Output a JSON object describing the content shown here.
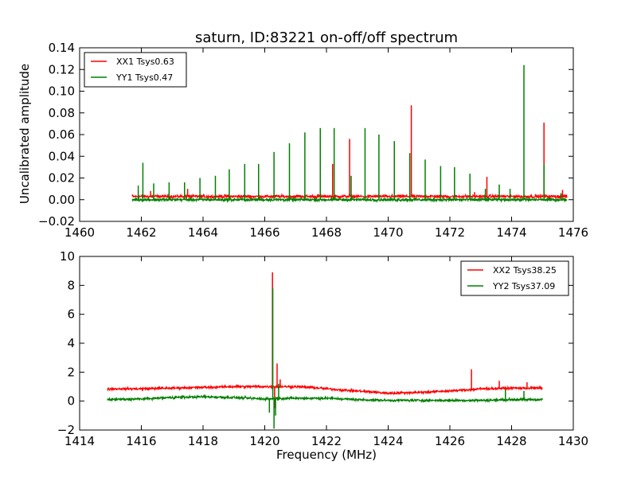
{
  "figure": {
    "title": "saturn, ID:83221 on-off/off spectrum",
    "ylabel": "Uncalibrated amplitude",
    "xlabel": "Frequency (MHz)"
  },
  "chart_data": [
    {
      "type": "line",
      "title": "saturn, ID:83221 on-off/off spectrum",
      "xlabel": "",
      "ylabel": "Uncalibrated amplitude",
      "xlim": [
        1460,
        1476
      ],
      "ylim": [
        -0.02,
        0.14
      ],
      "xticks": [
        1460,
        1462,
        1464,
        1466,
        1468,
        1470,
        1472,
        1474,
        1476
      ],
      "yticks": [
        -0.02,
        0.0,
        0.02,
        0.04,
        0.06,
        0.08,
        0.1,
        0.12,
        0.14
      ],
      "ytick_labels": [
        "−0.02",
        "0.00",
        "0.02",
        "0.04",
        "0.06",
        "0.08",
        "0.10",
        "0.12",
        "0.14"
      ],
      "legend_position": "top-left",
      "x_range": [
        1461.7,
        1475.8
      ],
      "series": [
        {
          "name": "XX1 Tsys0.63",
          "color": "#ff0000",
          "baseline": 0.003,
          "noise": 0.002,
          "spikes": [
            [
              1462.3,
              0.008
            ],
            [
              1463.5,
              0.01
            ],
            [
              1464.7,
              0.005
            ],
            [
              1465.8,
              0.016
            ],
            [
              1467.3,
              0.005
            ],
            [
              1468.2,
              0.033
            ],
            [
              1468.75,
              0.056
            ],
            [
              1470.75,
              0.087
            ],
            [
              1472.8,
              0.007
            ],
            [
              1473.2,
              0.021
            ],
            [
              1475.05,
              0.071
            ],
            [
              1475.65,
              0.009
            ]
          ]
        },
        {
          "name": "YY1 Tsys0.47",
          "color": "#008000",
          "baseline": 0.0,
          "noise": 0.002,
          "spikes": [
            [
              1461.9,
              0.013
            ],
            [
              1462.05,
              0.034
            ],
            [
              1462.4,
              0.015
            ],
            [
              1462.9,
              0.016
            ],
            [
              1463.4,
              0.016
            ],
            [
              1463.9,
              0.02
            ],
            [
              1464.4,
              0.022
            ],
            [
              1464.85,
              0.028
            ],
            [
              1465.35,
              0.033
            ],
            [
              1465.8,
              0.033
            ],
            [
              1466.3,
              0.044
            ],
            [
              1466.8,
              0.052
            ],
            [
              1467.3,
              0.062
            ],
            [
              1467.8,
              0.066
            ],
            [
              1468.25,
              0.066
            ],
            [
              1468.8,
              0.022
            ],
            [
              1469.25,
              0.066
            ],
            [
              1469.7,
              0.06
            ],
            [
              1470.2,
              0.054
            ],
            [
              1470.7,
              0.043
            ],
            [
              1471.2,
              0.037
            ],
            [
              1471.7,
              0.031
            ],
            [
              1472.15,
              0.03
            ],
            [
              1472.65,
              0.024
            ],
            [
              1473.15,
              0.01
            ],
            [
              1473.6,
              0.014
            ],
            [
              1473.95,
              0.01
            ],
            [
              1474.4,
              0.124
            ],
            [
              1475.05,
              0.033
            ],
            [
              1475.6,
              0.006
            ]
          ]
        }
      ]
    },
    {
      "type": "line",
      "title": "",
      "xlabel": "Frequency (MHz)",
      "ylabel": "",
      "xlim": [
        1414,
        1430
      ],
      "ylim": [
        -2,
        10
      ],
      "xticks": [
        1414,
        1416,
        1418,
        1420,
        1422,
        1424,
        1426,
        1428,
        1430
      ],
      "yticks": [
        -2,
        0,
        2,
        4,
        6,
        8,
        10
      ],
      "ytick_labels": [
        "−2",
        "0",
        "2",
        "4",
        "6",
        "8",
        "10"
      ],
      "legend_position": "top-right",
      "x_range": [
        1414.9,
        1429.0
      ],
      "series": [
        {
          "name": "XX2 Tsys38.25",
          "color": "#ff0000",
          "baseline_points": [
            [
              1414.9,
              0.85
            ],
            [
              1416.0,
              0.85
            ],
            [
              1417.0,
              0.9
            ],
            [
              1418.0,
              0.95
            ],
            [
              1419.0,
              1.0
            ],
            [
              1420.0,
              1.0
            ],
            [
              1421.0,
              1.0
            ],
            [
              1421.5,
              0.95
            ],
            [
              1422.0,
              0.85
            ],
            [
              1423.0,
              0.7
            ],
            [
              1424.0,
              0.55
            ],
            [
              1425.0,
              0.6
            ],
            [
              1426.0,
              0.7
            ],
            [
              1427.0,
              0.85
            ],
            [
              1428.0,
              0.9
            ],
            [
              1429.0,
              0.9
            ]
          ],
          "noise": 0.12,
          "spikes": [
            [
              1420.25,
              8.9
            ],
            [
              1420.32,
              -0.5
            ],
            [
              1420.4,
              2.6
            ],
            [
              1420.5,
              1.5
            ],
            [
              1426.7,
              2.2
            ],
            [
              1427.6,
              1.4
            ],
            [
              1428.5,
              1.3
            ]
          ]
        },
        {
          "name": "YY2 Tsys37.09",
          "color": "#008000",
          "baseline_points": [
            [
              1414.9,
              0.1
            ],
            [
              1416.0,
              0.15
            ],
            [
              1417.0,
              0.25
            ],
            [
              1418.0,
              0.3
            ],
            [
              1419.0,
              0.25
            ],
            [
              1420.0,
              0.15
            ],
            [
              1421.0,
              0.2
            ],
            [
              1422.0,
              0.2
            ],
            [
              1423.0,
              0.1
            ],
            [
              1424.0,
              0.05
            ],
            [
              1425.0,
              0.05
            ],
            [
              1426.0,
              0.05
            ],
            [
              1427.0,
              0.05
            ],
            [
              1428.0,
              0.1
            ],
            [
              1429.0,
              0.1
            ]
          ],
          "noise": 0.12,
          "spikes": [
            [
              1420.26,
              7.8
            ],
            [
              1420.3,
              -1.9
            ],
            [
              1420.35,
              -1.0
            ],
            [
              1420.45,
              1.2
            ],
            [
              1420.15,
              -0.8
            ],
            [
              1427.8,
              0.8
            ],
            [
              1428.4,
              0.7
            ]
          ]
        }
      ]
    }
  ]
}
